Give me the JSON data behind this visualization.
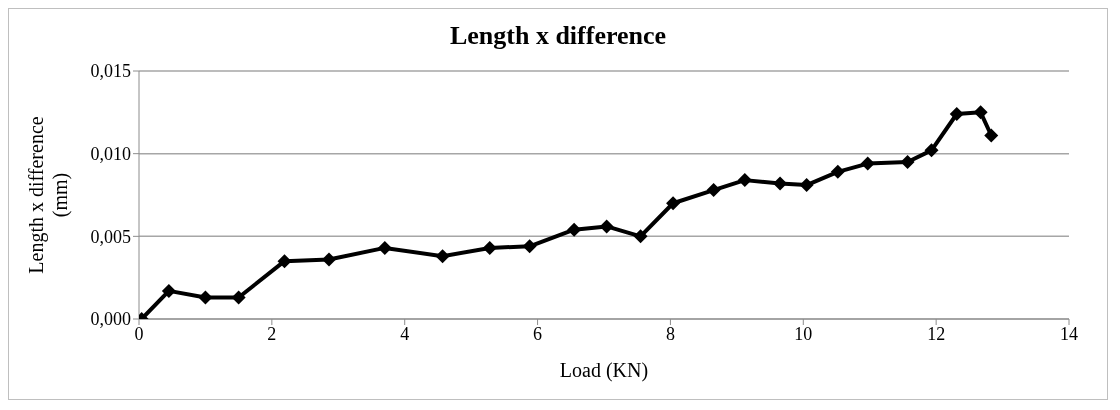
{
  "chart_data": {
    "type": "line",
    "title": "Length x difference",
    "xlabel": "Load (KN)",
    "ylabel": "Length x difference (mm)",
    "x": [
      0.04,
      0.45,
      1.0,
      1.5,
      2.19,
      2.86,
      3.7,
      4.57,
      5.28,
      5.88,
      6.55,
      7.04,
      7.55,
      8.04,
      8.65,
      9.12,
      9.65,
      10.05,
      10.52,
      10.97,
      11.57,
      11.93,
      12.31,
      12.67,
      12.83
    ],
    "series": [
      {
        "color": "#000000",
        "values": [
          0.0,
          0.0017,
          0.0013,
          0.0013,
          0.0035,
          0.0036,
          0.0043,
          0.0038,
          0.0043,
          0.0044,
          0.0054,
          0.0056,
          0.005,
          0.007,
          0.0078,
          0.0084,
          0.0082,
          0.0081,
          0.0089,
          0.0094,
          0.0095,
          0.0102,
          0.0124,
          0.0125,
          0.0111
        ]
      }
    ],
    "xlim": [
      0,
      14
    ],
    "xticks": [
      0,
      2,
      4,
      6,
      8,
      10,
      12,
      14
    ],
    "ylim": [
      0,
      0.015
    ],
    "yticks": [
      {
        "value": 0,
        "label": "0,000"
      },
      {
        "value": 0.005,
        "label": "0,005"
      },
      {
        "value": 0.01,
        "label": "0,010"
      },
      {
        "value": 0.015,
        "label": "0,015"
      }
    ],
    "grid": "y",
    "marker": "diamond",
    "line_style": "solid"
  }
}
